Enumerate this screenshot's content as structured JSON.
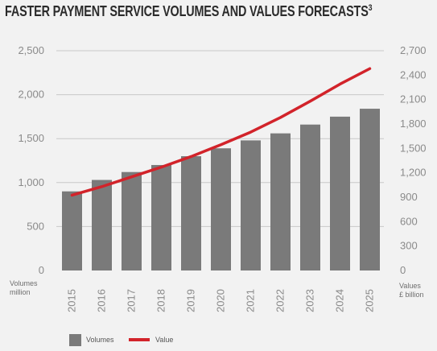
{
  "chart_data": {
    "type": "bar",
    "title": "FASTER PAYMENT SERVICE VOLUMES AND VALUES FORECASTS",
    "title_superscript": "3",
    "categories": [
      "2015",
      "2016",
      "2017",
      "2018",
      "2019",
      "2020",
      "2021",
      "2022",
      "2023",
      "2024",
      "2025"
    ],
    "series": [
      {
        "name": "Volumes",
        "type": "bar",
        "axis": "left",
        "color": "#7a7a7a",
        "values": [
          900,
          1030,
          1120,
          1200,
          1300,
          1390,
          1480,
          1560,
          1660,
          1750,
          1840
        ]
      },
      {
        "name": "Value",
        "type": "line",
        "axis": "right",
        "color": "#d2232a",
        "values": [
          925,
          1030,
          1150,
          1270,
          1400,
          1545,
          1700,
          1880,
          2080,
          2290,
          2480
        ]
      }
    ],
    "y_left": {
      "label_line1": "Volumes",
      "label_line2": "million",
      "ylim": [
        0,
        2500
      ],
      "ticks": [
        "0",
        "500",
        "1,000",
        "1,500",
        "2,000",
        "2,500"
      ],
      "tick_values": [
        0,
        500,
        1000,
        1500,
        2000,
        2500
      ]
    },
    "y_right": {
      "label_line1": "Values",
      "label_line2": "£ billion",
      "ylim": [
        0,
        2700
      ],
      "ticks": [
        "0",
        "300",
        "600",
        "900",
        "1,200",
        "1,500",
        "1,800",
        "2,100",
        "2,400",
        "2,700"
      ],
      "tick_values": [
        0,
        300,
        600,
        900,
        1200,
        1500,
        1800,
        2100,
        2400,
        2700
      ]
    },
    "grid": true,
    "grid_color": "#c8c8c8",
    "legend_position": "bottom-left",
    "legend": [
      {
        "label": "Volumes",
        "marker": "square",
        "color": "#7a7a7a"
      },
      {
        "label": "Value",
        "marker": "line",
        "color": "#d2232a"
      }
    ]
  }
}
